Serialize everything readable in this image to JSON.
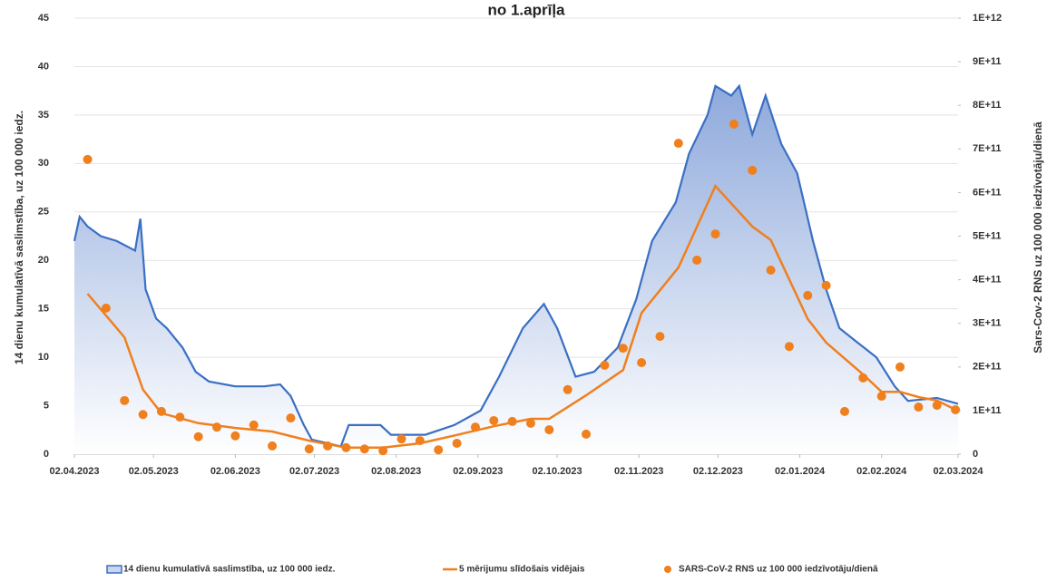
{
  "chart_data": {
    "type": "combo",
    "title": "no 1.aprīļa",
    "ylabel": "14 dienu kumulatīvā saslimstība, uz 100 000 iedz.",
    "y2label": "Sars-Cov-2 RNS uz 100 000 iedzīvotāju/dienā",
    "xlim": [
      "02.04.2023",
      "02.03.2024"
    ],
    "xticks": [
      "02.04.2023",
      "02.05.2023",
      "02.06.2023",
      "02.07.2023",
      "02.08.2023",
      "02.09.2023",
      "02.10.2023",
      "02.11.2023",
      "02.12.2023",
      "02.01.2024",
      "02.02.2024",
      "02.03.2024"
    ],
    "ylim": [
      0,
      45
    ],
    "yticks": [
      0,
      5,
      10,
      15,
      20,
      25,
      30,
      35,
      40,
      45
    ],
    "y2lim": [
      0,
      1000000000000
    ],
    "y2ticks": [
      0,
      {
        "value": 100000000000,
        "label": "1E+11"
      },
      {
        "value": 200000000000,
        "label": "2E+11"
      },
      {
        "value": 300000000000,
        "label": "3E+11"
      },
      {
        "value": 400000000000,
        "label": "4E+11"
      },
      {
        "value": 500000000000,
        "label": "5E+11"
      },
      {
        "value": 600000000000,
        "label": "6E+11"
      },
      {
        "value": 700000000000,
        "label": "7E+11"
      },
      {
        "value": 800000000000,
        "label": "8E+11"
      },
      {
        "value": 900000000000,
        "label": "9E+11"
      },
      {
        "value": 1000000000000,
        "label": "1E+12"
      }
    ],
    "grid": true,
    "legend": "bottom",
    "series": [
      {
        "name": "14 dienu kumulatīvā saslimstība, uz 100 000 iedz.",
        "type": "area",
        "color": "#3a6fc4",
        "x": [
          "02.04.2023",
          "04.04.2023",
          "07.04.2023",
          "12.04.2023",
          "18.04.2023",
          "25.04.2023",
          "27.04.2023",
          "29.04.2023",
          "03.05.2023",
          "07.05.2023",
          "13.05.2023",
          "18.05.2023",
          "23.05.2023",
          "02.06.2023",
          "13.06.2023",
          "19.06.2023",
          "23.06.2023",
          "28.06.2023",
          "01.07.2023",
          "12.07.2023",
          "15.07.2023",
          "27.07.2023",
          "31.07.2023",
          "13.08.2023",
          "24.08.2023",
          "03.09.2023",
          "10.09.2023",
          "19.09.2023",
          "27.09.2023",
          "02.10.2023",
          "09.10.2023",
          "16.10.2023",
          "25.10.2023",
          "01.11.2023",
          "07.11.2023",
          "16.11.2023",
          "21.11.2023",
          "28.11.2023",
          "01.12.2023",
          "07.12.2023",
          "10.12.2023",
          "15.12.2023",
          "20.12.2023",
          "26.12.2023",
          "01.01.2024",
          "07.01.2024",
          "12.01.2024",
          "17.01.2024",
          "24.01.2024",
          "31.01.2024",
          "07.02.2024",
          "12.02.2024",
          "23.02.2024",
          "02.03.2024"
        ],
        "values": [
          22,
          24.5,
          23.5,
          22.5,
          22,
          21,
          24.3,
          17,
          14,
          13,
          11,
          8.5,
          7.5,
          7,
          7,
          7.2,
          6,
          3,
          1.5,
          0.8,
          3,
          3,
          2,
          2,
          3,
          4.5,
          8,
          13,
          15.5,
          13,
          8,
          8.5,
          11,
          16,
          22,
          26,
          31,
          35,
          38,
          37,
          38,
          33,
          37,
          32,
          29,
          22,
          17,
          13,
          11.5,
          10,
          7,
          5.5,
          5.8,
          5.2
        ]
      },
      {
        "name": "5 mērijumu slīdošais vidējais",
        "type": "line",
        "axis": "y2",
        "color": "#f07f1e",
        "x": [
          "07.04.2023",
          "21.04.2023",
          "28.04.2023",
          "05.05.2023",
          "19.05.2023",
          "02.06.2023",
          "16.06.2023",
          "30.06.2023",
          "14.07.2023",
          "28.07.2023",
          "11.08.2023",
          "25.08.2023",
          "08.09.2023",
          "22.09.2023",
          "29.09.2023",
          "13.10.2023",
          "27.10.2023",
          "03.11.2023",
          "17.11.2023",
          "01.12.2023",
          "15.12.2023",
          "22.12.2023",
          "05.01.2024",
          "12.01.2024",
          "26.01.2024",
          "02.02.2024",
          "09.02.2024",
          "16.02.2024",
          "23.02.2024",
          "01.03.2024"
        ],
        "values": [
          368000000000,
          268000000000,
          148000000000,
          94000000000,
          71000000000,
          60000000000,
          52000000000,
          31000000000,
          15000000000,
          15000000000,
          25000000000,
          44000000000,
          64000000000,
          81000000000,
          81000000000,
          135000000000,
          193000000000,
          324000000000,
          428000000000,
          615000000000,
          522000000000,
          491000000000,
          310000000000,
          256000000000,
          183000000000,
          143000000000,
          143000000000,
          131000000000,
          123000000000,
          102000000000
        ]
      },
      {
        "name": "SARS-CoV-2 RNS uz 100 000 iedzīvotāju/dienā",
        "type": "scatter",
        "axis": "y2",
        "color": "#f07f1e",
        "x": [
          "07.04.2023",
          "14.04.2023",
          "21.04.2023",
          "28.04.2023",
          "05.05.2023",
          "12.05.2023",
          "19.05.2023",
          "26.05.2023",
          "02.06.2023",
          "09.06.2023",
          "16.06.2023",
          "23.06.2023",
          "30.06.2023",
          "07.07.2023",
          "14.07.2023",
          "21.07.2023",
          "28.07.2023",
          "04.08.2023",
          "11.08.2023",
          "18.08.2023",
          "25.08.2023",
          "01.09.2023",
          "08.09.2023",
          "15.09.2023",
          "22.09.2023",
          "29.09.2023",
          "06.10.2023",
          "13.10.2023",
          "20.10.2023",
          "27.10.2023",
          "03.11.2023",
          "10.11.2023",
          "17.11.2023",
          "24.11.2023",
          "01.12.2023",
          "08.12.2023",
          "15.12.2023",
          "22.12.2023",
          "29.12.2023",
          "05.01.2024",
          "12.01.2024",
          "19.01.2024",
          "26.01.2024",
          "02.02.2024",
          "09.02.2024",
          "16.02.2024",
          "23.02.2024",
          "01.03.2024"
        ],
        "values": [
          676000000000,
          335000000000,
          123000000000,
          91000000000,
          98000000000,
          85000000000,
          40000000000,
          62000000000,
          42000000000,
          67000000000,
          19000000000,
          83000000000,
          12000000000,
          19000000000,
          15000000000,
          12000000000,
          8000000000,
          35000000000,
          31000000000,
          10000000000,
          25000000000,
          62000000000,
          77000000000,
          75000000000,
          71000000000,
          56000000000,
          148000000000,
          46000000000,
          204000000000,
          243000000000,
          210000000000,
          270000000000,
          713000000000,
          445000000000,
          505000000000,
          757000000000,
          651000000000,
          422000000000,
          247000000000,
          364000000000,
          387000000000,
          98000000000,
          175000000000,
          133000000000,
          200000000000,
          108000000000,
          112000000000,
          102000000000
        ]
      }
    ]
  }
}
